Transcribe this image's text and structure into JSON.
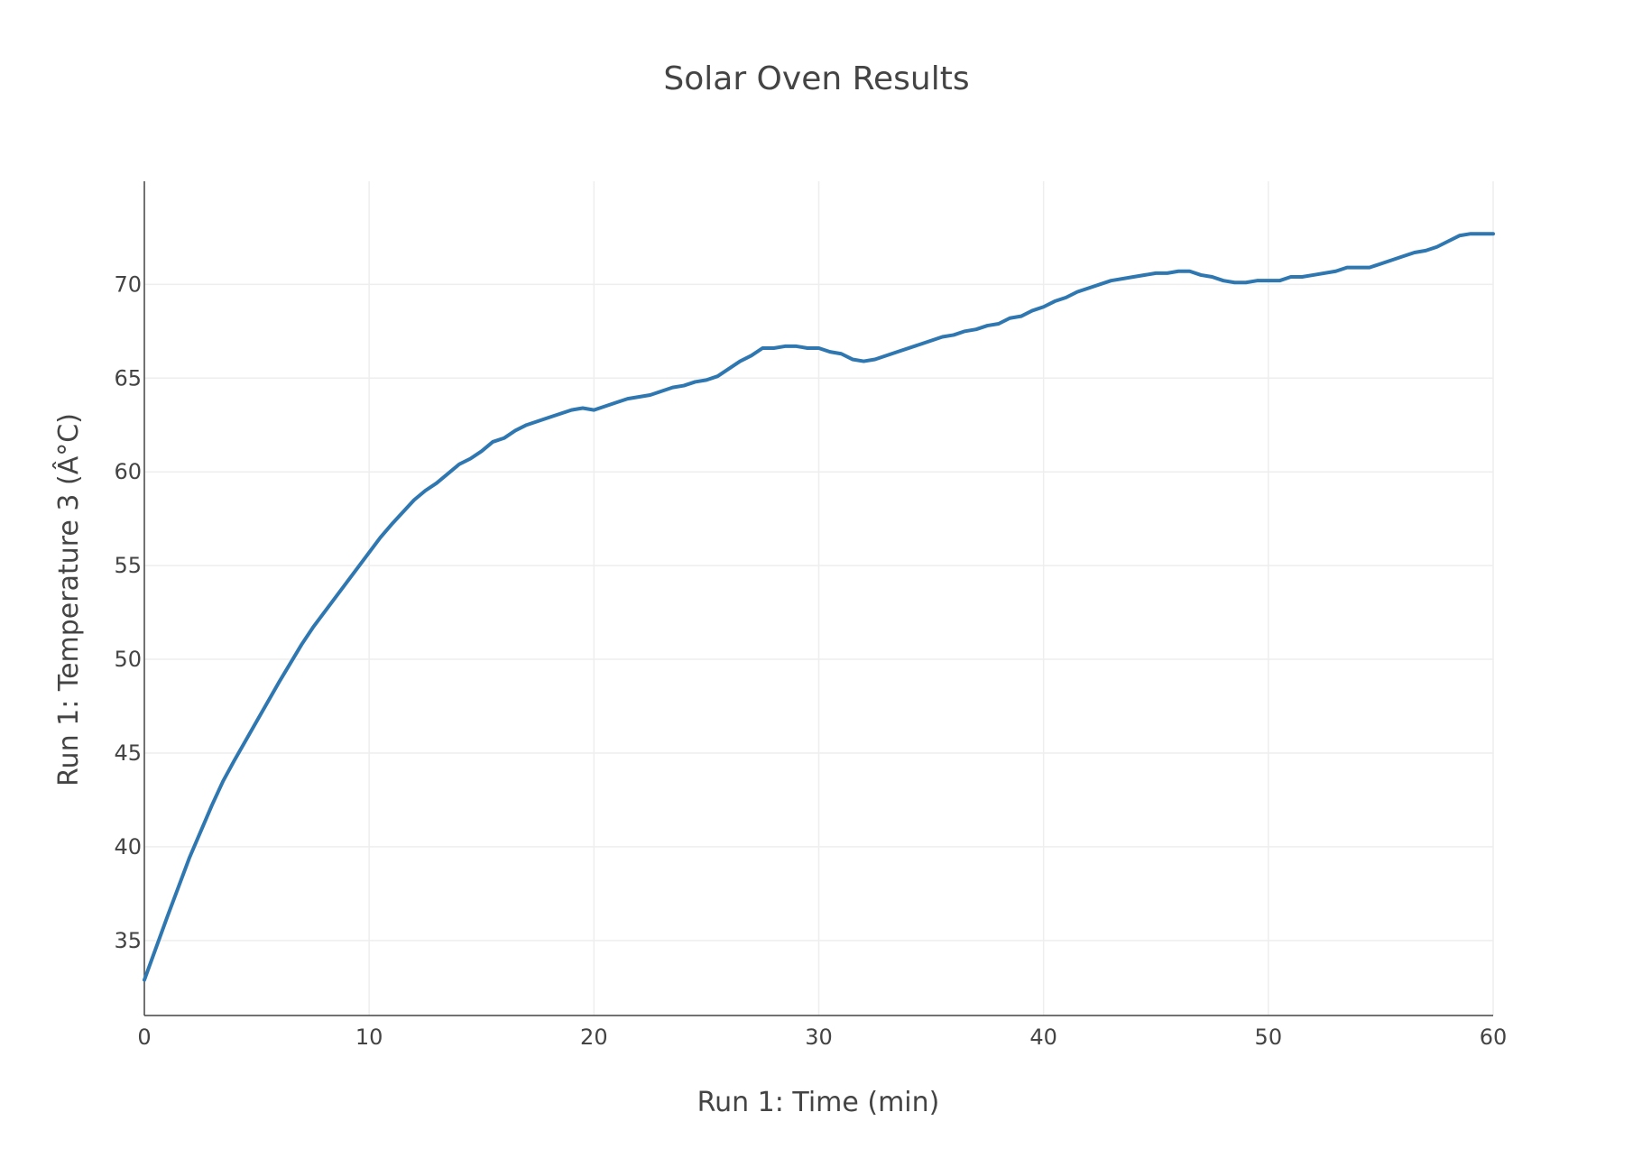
{
  "chart_data": {
    "type": "line",
    "title": "Solar Oven Results",
    "xlabel": "Run 1: Time (min)",
    "ylabel": "Run 1: Temperature 3 (Â°C)",
    "xlim": [
      0,
      60
    ],
    "ylim": [
      31,
      75.5
    ],
    "x_ticks": [
      0,
      10,
      20,
      30,
      40,
      50,
      60
    ],
    "y_ticks": [
      35,
      40,
      45,
      50,
      55,
      60,
      65,
      70
    ],
    "grid": true,
    "legend": "none",
    "series": [
      {
        "name": "Run 1: Temperature 3",
        "color": "#2e77b0",
        "x": [
          0,
          1,
          2,
          3,
          3.5,
          4,
          5,
          6,
          7,
          7.5,
          8,
          9,
          10,
          10.5,
          11,
          12,
          12.5,
          13,
          14,
          14.5,
          15,
          15.5,
          16,
          16.5,
          17,
          18,
          19,
          19.5,
          20,
          21,
          21.5,
          22.5,
          23.5,
          24,
          24.5,
          25,
          25.5,
          26.5,
          27,
          27.5,
          28,
          28.5,
          29,
          29.5,
          30,
          30.5,
          31,
          31.5,
          32,
          32.5,
          33.5,
          34.5,
          35.5,
          36,
          36.5,
          37,
          37.5,
          38,
          38.5,
          39,
          39.5,
          40,
          40.5,
          41,
          41.5,
          42,
          43,
          44,
          45,
          45.5,
          46,
          46.5,
          47,
          47.5,
          48,
          48.5,
          49,
          49.5,
          50,
          50.5,
          51,
          51.5,
          52,
          53,
          53.5,
          54,
          54.5,
          55,
          56,
          56.5,
          57,
          57.5,
          58,
          58.5,
          59,
          59.5,
          60
        ],
        "y": [
          32.9,
          36.2,
          39.4,
          42.2,
          43.5,
          44.6,
          46.7,
          48.8,
          50.8,
          51.7,
          52.5,
          54.1,
          55.7,
          56.5,
          57.2,
          58.5,
          59.0,
          59.4,
          60.4,
          60.7,
          61.1,
          61.6,
          61.8,
          62.2,
          62.5,
          62.9,
          63.3,
          63.4,
          63.3,
          63.7,
          63.9,
          64.1,
          64.5,
          64.6,
          64.8,
          64.9,
          65.1,
          65.9,
          66.2,
          66.6,
          66.6,
          66.7,
          66.7,
          66.6,
          66.6,
          66.4,
          66.3,
          66.0,
          65.9,
          66.0,
          66.4,
          66.8,
          67.2,
          67.3,
          67.5,
          67.6,
          67.8,
          67.9,
          68.2,
          68.3,
          68.6,
          68.8,
          69.1,
          69.3,
          69.6,
          69.8,
          70.2,
          70.4,
          70.6,
          70.6,
          70.7,
          70.7,
          70.5,
          70.4,
          70.2,
          70.1,
          70.1,
          70.2,
          70.2,
          70.2,
          70.4,
          70.4,
          70.5,
          70.7,
          70.9,
          70.9,
          70.9,
          71.1,
          71.5,
          71.7,
          71.8,
          72.0,
          72.3,
          72.6,
          72.7,
          72.7,
          72.7
        ]
      }
    ]
  }
}
